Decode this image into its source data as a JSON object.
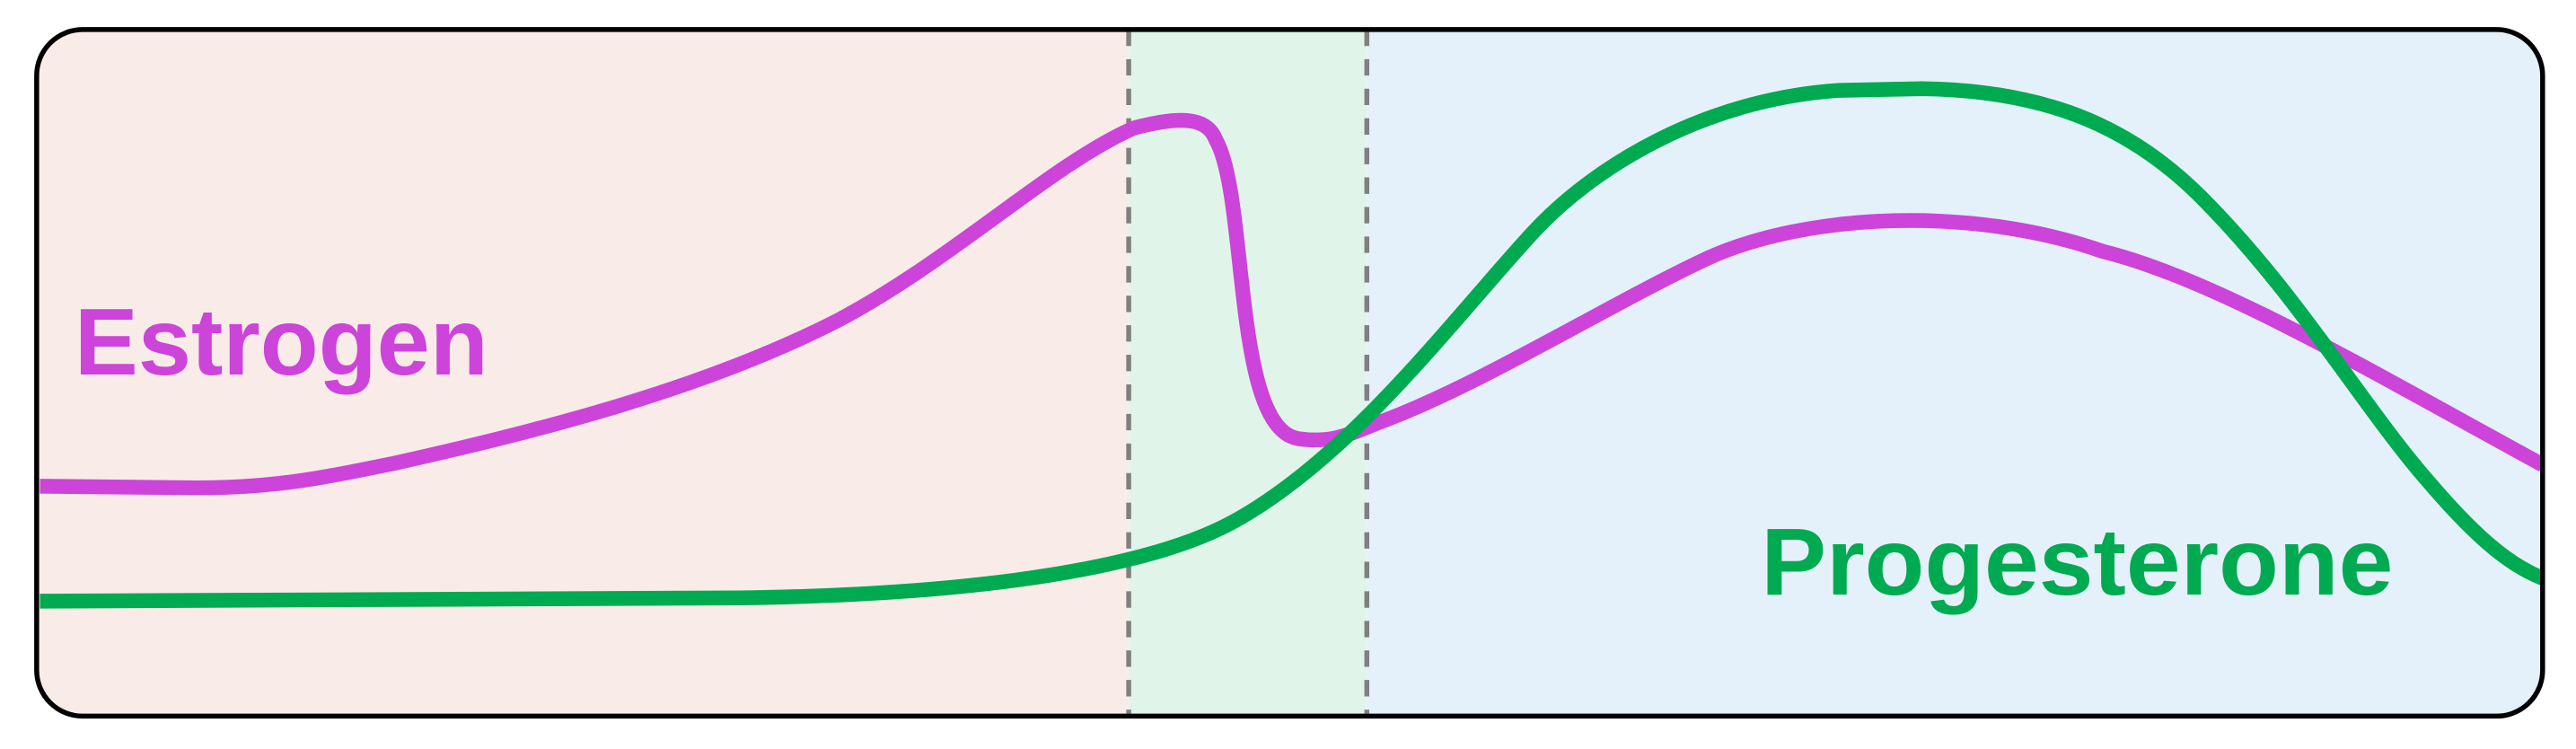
{
  "labels": {
    "estrogen": "Estrogen",
    "progesterone": "Progesterone"
  }
}
